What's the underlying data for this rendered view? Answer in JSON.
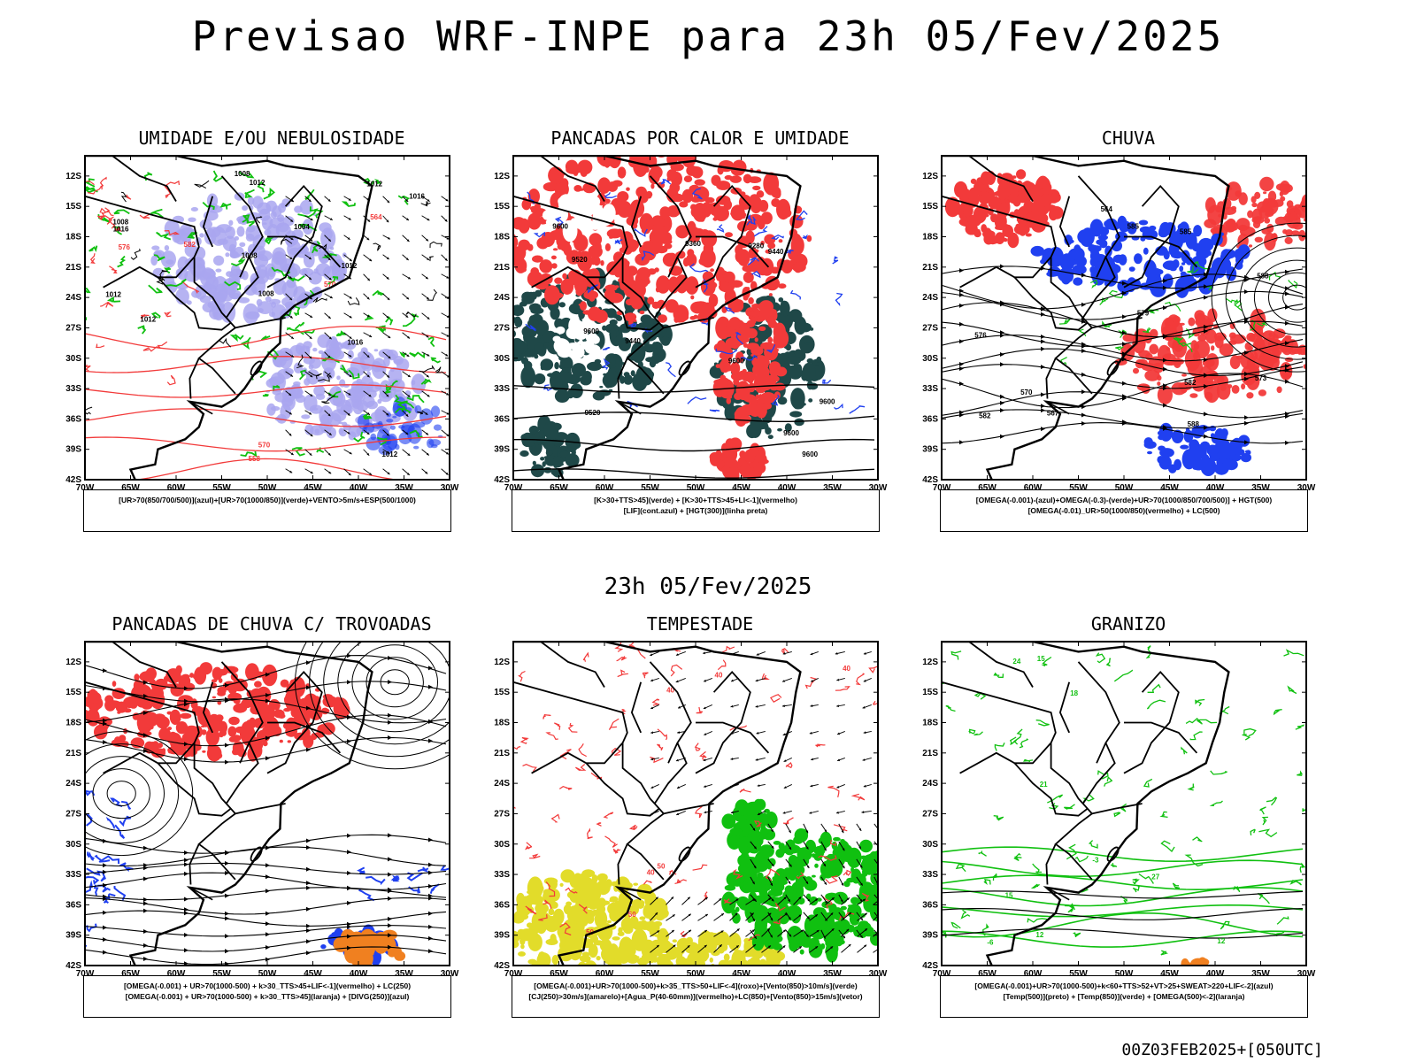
{
  "header": {
    "title": "Previsao WRF-INPE  para 23h 05/Fev/2025"
  },
  "mid_date": "23h 05/Fev/2025",
  "footer_stamp": "00Z03FEB2025+[050UTC]",
  "axes": {
    "lat_labels": [
      "12S",
      "15S",
      "18S",
      "21S",
      "24S",
      "27S",
      "30S",
      "33S",
      "36S",
      "39S",
      "42S"
    ],
    "lon_labels": [
      "70W",
      "65W",
      "60W",
      "55W",
      "50W",
      "45W",
      "40W",
      "35W",
      "30W"
    ]
  },
  "panels": [
    {
      "title": "UMIDADE E/OU NEBULOSIDADE",
      "caption": [
        "[UR>70(850/700/500)](azul)+[UR>70(1000/850)](verde)+VENTO>5m/s+ESP(500/1000)"
      ],
      "labels": [
        "1012",
        "1012",
        "1012",
        "1016",
        "1008",
        "1012",
        "1012",
        "1004",
        "1008",
        "1012",
        "1008",
        "1016",
        "1008",
        "1016",
        "576",
        "582",
        "570",
        "570",
        "564",
        "558"
      ]
    },
    {
      "title": "PANCADAS POR CALOR E UMIDADE",
      "caption": [
        "[K>30+TTS>45](verde) + [K>30+TTS>45+LI<-1](vermelho)",
        "[LIF](cont.azul) + [HGT(300)](linha preta)"
      ],
      "labels": [
        "9600",
        "9600",
        "9600",
        "9600",
        "9600",
        "9520",
        "9520",
        "9440",
        "9440",
        "9360",
        "9280",
        "9600"
      ]
    },
    {
      "title": "CHUVA",
      "caption": [
        "[OMEGA(-0.001)-(azul)+OMEGA(-0.3)-(verde)+UR>70(1000/850/700/500)] + HGT(500)",
        "[OMEGA(-0.01)_UR>50(1000/850)(vermelho) + LC(500)"
      ],
      "labels": [
        "585",
        "585",
        "582",
        "582",
        "579",
        "576",
        "573",
        "570",
        "567",
        "564",
        "588",
        "588"
      ]
    },
    {
      "title": "PANCADAS DE CHUVA C/ TROVOADAS",
      "caption": [
        "[OMEGA(-0.001) + UR>70(1000-500) + k>30_TTS>45+LIF<-1](vermelho) + LC(250)",
        "[OMEGA(-0.001) + UR>70(1000-500) + k>30_TTS>45](laranja) + [DIVG(250)](azul)"
      ],
      "labels": []
    },
    {
      "title": "TEMPESTADE",
      "caption": [
        "[OMEGA(-0.001)+UR>70(1000-500)+k>35_TTS>50+LIF<-4](roxo)+[Vento(850)>10m/s](verde)",
        "[CJ(250)>30m/s](amarelo)+[Agua_P(40-60mm)](vermelho)+LC(850)+[Vento(850)>15m/s](vetor)"
      ],
      "labels": [
        "40",
        "50",
        "40",
        "50",
        "40",
        "50",
        "40"
      ]
    },
    {
      "title": "GRANIZO",
      "caption": [
        "[OMEGA(-0.001)+UR>70(1000-500)+k<60+TTS>52+VT>25+SWEAT>220+LIF<-2](azul)",
        "[Temp(500)](preto) + [Temp(850)](verde) + [OMEGA(500)<-2](laranja)"
      ],
      "labels": [
        "27",
        "24",
        "21",
        "18",
        "15",
        "12",
        "-3",
        "-6",
        "12",
        "15"
      ]
    }
  ],
  "colors": {
    "red": "#f23a3a",
    "green": "#10c010",
    "blue": "#2040f0",
    "lavender": "#a9a6f0",
    "darkteal": "#1f4848",
    "yellow": "#e2dc2a",
    "orange": "#f08020"
  }
}
